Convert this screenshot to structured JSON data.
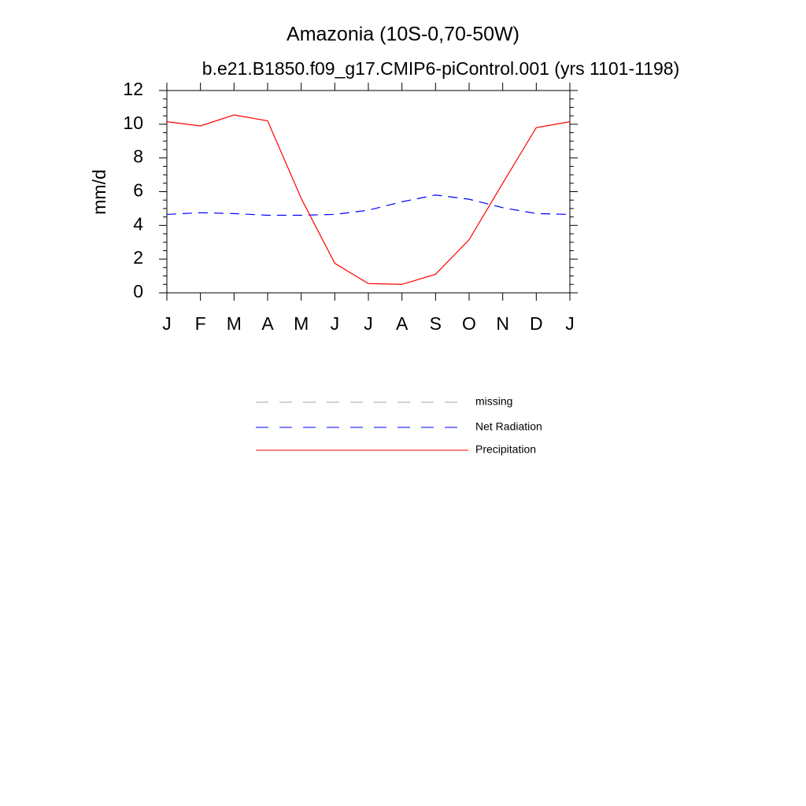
{
  "chart_data": {
    "type": "line",
    "title": "Amazonia (10S-0,70-50W)",
    "subtitle": "b.e21.B1850.f09_g17.CMIP6-piControl.001 (yrs 1101-1198)",
    "y_label": "mm/d",
    "categories": [
      "J",
      "F",
      "M",
      "A",
      "M",
      "J",
      "J",
      "A",
      "S",
      "O",
      "N",
      "D",
      "J"
    ],
    "series": [
      {
        "name": "missing",
        "color": "#a0a0a0",
        "dash": true,
        "values": [
          null,
          null,
          null,
          null,
          null,
          null,
          null,
          null,
          null,
          null,
          null,
          null,
          null
        ]
      },
      {
        "name": "Net Radiation",
        "color": "#0000ff",
        "dash": true,
        "values": [
          4.65,
          4.75,
          4.7,
          4.6,
          4.6,
          4.65,
          4.9,
          5.4,
          5.8,
          5.55,
          5.05,
          4.7,
          4.65
        ]
      },
      {
        "name": "Precipitation",
        "color": "#ff0000",
        "dash": false,
        "values": [
          10.15,
          9.9,
          10.55,
          10.2,
          5.6,
          1.75,
          0.55,
          0.5,
          1.1,
          3.15,
          6.5,
          9.8,
          10.15
        ]
      }
    ],
    "ylim": [
      0,
      12
    ],
    "yticks": [
      0,
      2,
      4,
      6,
      8,
      10,
      12
    ],
    "yminorticks": [
      0.5,
      1,
      1.5,
      2.5,
      3,
      3.5,
      4.5,
      5,
      5.5,
      6.5,
      7,
      7.5,
      8.5,
      9,
      9.5,
      10.5,
      11,
      11.5
    ]
  }
}
